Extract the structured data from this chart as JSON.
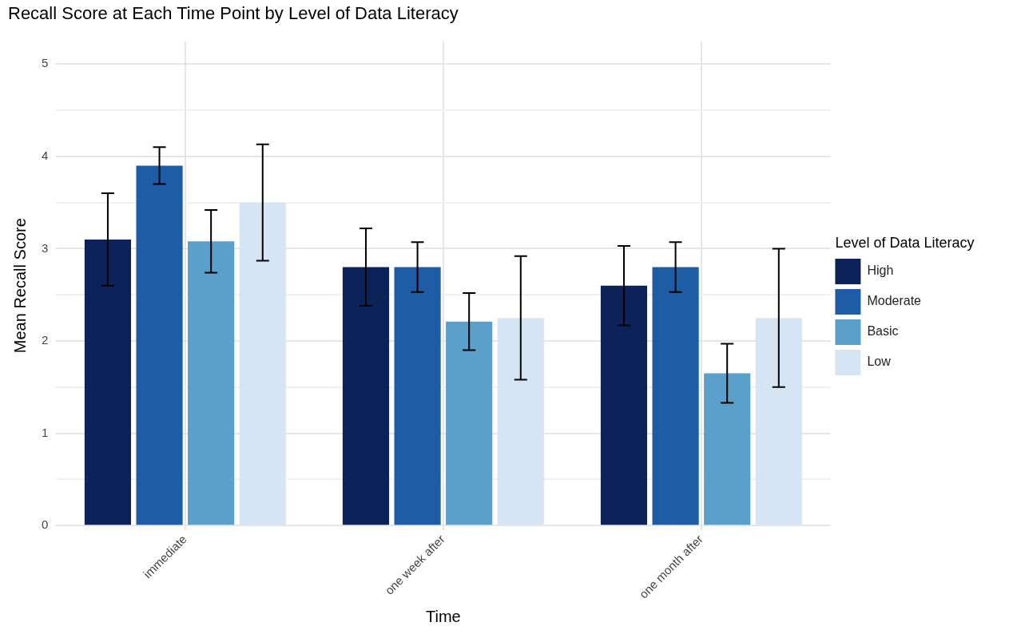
{
  "chart_data": {
    "type": "bar",
    "title": "Recall Score at Each Time Point by Level of Data Literacy",
    "xlabel": "Time",
    "ylabel": "Mean Recall Score",
    "legend_title": "Level of Data Literacy",
    "categories": [
      "immediate",
      "one week after",
      "one month after"
    ],
    "series": [
      {
        "name": "High",
        "color": "#0c2259",
        "values": [
          3.1,
          2.8,
          2.6
        ],
        "errors": [
          0.5,
          0.42,
          0.43
        ]
      },
      {
        "name": "Moderate",
        "color": "#1f5ca6",
        "values": [
          3.9,
          2.8,
          2.8
        ],
        "errors": [
          0.2,
          0.27,
          0.27
        ]
      },
      {
        "name": "Basic",
        "color": "#5b9fcb",
        "values": [
          3.08,
          2.21,
          1.65
        ],
        "errors": [
          0.34,
          0.31,
          0.32
        ]
      },
      {
        "name": "Low",
        "color": "#d6e5f3",
        "values": [
          3.5,
          2.25,
          2.25
        ],
        "errors": [
          0.63,
          0.67,
          0.75
        ]
      }
    ],
    "ylim": [
      -0.05,
      5.25
    ],
    "yticks": [
      0,
      {
        "value": 0.5,
        "label": null
      },
      1,
      {
        "value": 1.5,
        "label": null
      },
      2,
      {
        "value": 2.5,
        "label": null
      },
      3,
      {
        "value": 3.5,
        "label": null
      },
      4,
      {
        "value": 4.5,
        "label": null
      },
      5
    ],
    "grid": true,
    "legend": "right"
  }
}
